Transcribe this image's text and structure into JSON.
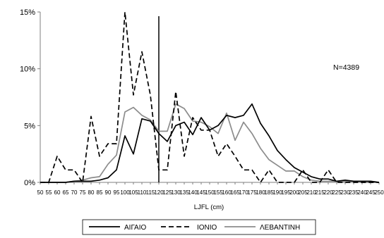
{
  "chart_data": {
    "type": "line",
    "title": "",
    "xlabel": "LJFL (cm)",
    "ylabel": "",
    "annotation": "N=4389",
    "xlim": [
      50,
      250
    ],
    "ylim": [
      0,
      15
    ],
    "x_ticks": [
      50,
      55,
      60,
      65,
      70,
      75,
      80,
      85,
      90,
      95,
      100,
      105,
      110,
      115,
      120,
      125,
      130,
      135,
      140,
      145,
      150,
      155,
      160,
      165,
      170,
      175,
      180,
      185,
      190,
      195,
      200,
      205,
      210,
      215,
      220,
      225,
      230,
      235,
      240,
      245,
      250
    ],
    "y_ticks": [
      {
        "value": 0,
        "label": "0%"
      },
      {
        "value": 5,
        "label": "5%"
      },
      {
        "value": 10,
        "label": "10%"
      },
      {
        "value": 15,
        "label": "15%"
      }
    ],
    "vertical_marker_x": 120,
    "x": [
      50,
      55,
      60,
      65,
      70,
      75,
      80,
      85,
      90,
      95,
      100,
      105,
      110,
      115,
      120,
      125,
      130,
      135,
      140,
      145,
      150,
      155,
      160,
      165,
      170,
      175,
      180,
      185,
      190,
      195,
      200,
      205,
      210,
      215,
      220,
      225,
      230,
      235,
      240,
      245,
      250
    ],
    "series": [
      {
        "name": "ΑΙΓΑΙΟ",
        "style": "solid-black",
        "values": [
          0,
          0,
          0,
          0,
          0.1,
          0.1,
          0.1,
          0.2,
          0.4,
          1.1,
          4.1,
          2.5,
          5.6,
          5.4,
          4.3,
          3.6,
          5.0,
          5.3,
          4.2,
          5.7,
          4.6,
          5.0,
          5.9,
          5.7,
          5.9,
          6.9,
          5.2,
          4.1,
          2.8,
          2.0,
          1.3,
          0.9,
          0.5,
          0.3,
          0.3,
          0.1,
          0.2,
          0.1,
          0.1,
          0.1,
          0
        ]
      },
      {
        "name": "ΙΟΝΙΟ",
        "style": "dashed-black",
        "values": [
          0,
          0,
          2.3,
          1.1,
          1.1,
          0,
          5.8,
          2.3,
          3.4,
          3.4,
          15,
          7.7,
          11.5,
          7.7,
          1.1,
          1.1,
          8.0,
          2.3,
          5.7,
          4.6,
          4.6,
          2.3,
          3.4,
          2.3,
          1.1,
          1.1,
          0,
          1.1,
          0,
          0,
          0,
          1.1,
          0,
          0,
          1.1,
          0,
          0,
          0,
          0,
          0,
          0
        ]
      },
      {
        "name": "ΛΕΒΑΝΤΙΝΗ",
        "style": "solid-gray",
        "values": [
          0,
          0,
          0,
          0,
          0.1,
          0.2,
          0.4,
          0.5,
          1.6,
          2.4,
          6.2,
          6.6,
          5.9,
          5.5,
          4.5,
          4.5,
          6.9,
          6.5,
          5.4,
          5.3,
          4.9,
          4.3,
          6.1,
          3.7,
          5.3,
          4.3,
          3.0,
          2.0,
          1.5,
          1.0,
          1.0,
          0.5,
          0.2,
          0.1,
          0.1,
          0.1,
          0.1,
          0.1,
          0,
          0,
          0
        ]
      }
    ],
    "legend_position": "bottom",
    "grid": false
  },
  "colors": {
    "aigaio": "#000000",
    "ionio": "#000000",
    "levantini": "#8c8c8c",
    "axis": "#7f7f7f",
    "marker": "#000000",
    "text": "#000000"
  }
}
